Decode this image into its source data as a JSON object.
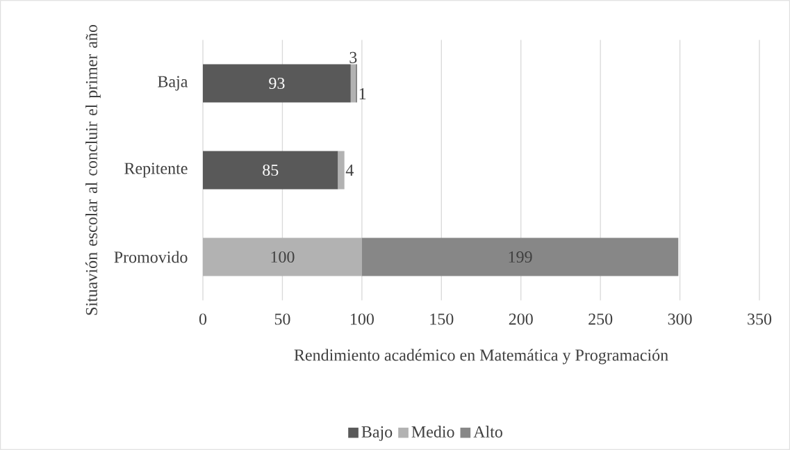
{
  "chart_data": {
    "type": "bar",
    "orientation": "horizontal",
    "stacked": true,
    "xlabel": "Rendimiento académico en Matemática y Programación",
    "ylabel": "Situavión escolar al concluir el primer año",
    "categories": [
      "Baja",
      "Repitente",
      "Promovido"
    ],
    "series": [
      {
        "name": "Bajo",
        "color": "#595959",
        "values": [
          93,
          85,
          null
        ],
        "value_labels": [
          "93",
          "85",
          null
        ]
      },
      {
        "name": "Medio",
        "color": "#b2b2b2",
        "values": [
          3,
          4,
          100
        ],
        "value_labels": [
          "3",
          "4",
          "100"
        ]
      },
      {
        "name": "Alto",
        "color": "#878787",
        "values": [
          1,
          null,
          199
        ],
        "value_labels": [
          "1",
          null,
          "199"
        ]
      }
    ],
    "xlim": [
      0,
      350
    ],
    "xticks": [
      0,
      50,
      100,
      150,
      200,
      250,
      300,
      350
    ],
    "grid": "x",
    "legend": "bottom"
  }
}
